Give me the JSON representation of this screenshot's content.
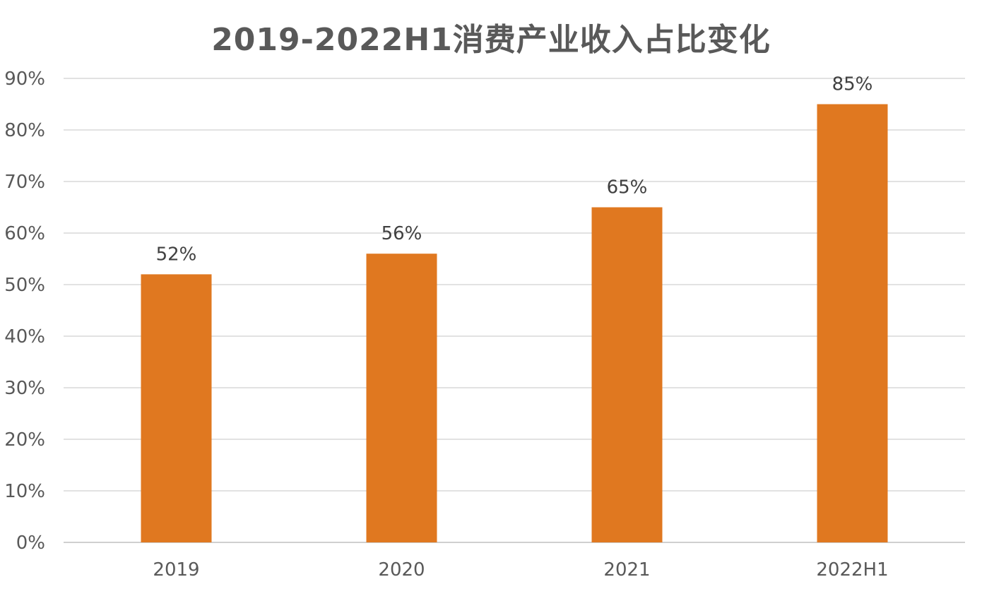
{
  "chart_data": {
    "type": "bar",
    "title": "2019-2022H1消费产业收入占比变化",
    "categories": [
      "2019",
      "2020",
      "2021",
      "2022H1"
    ],
    "values": [
      52,
      56,
      65,
      85
    ],
    "data_labels": [
      "52%",
      "56%",
      "65%",
      "85%"
    ],
    "ylim": [
      0,
      90
    ],
    "y_ticks": [
      0,
      10,
      20,
      30,
      40,
      50,
      60,
      70,
      80,
      90
    ],
    "y_tick_labels": [
      "0%",
      "10%",
      "20%",
      "30%",
      "40%",
      "50%",
      "60%",
      "70%",
      "80%",
      "90%"
    ],
    "grid": true,
    "legend": "none",
    "bar_color": "#E07820",
    "grid_color": "#D9D9D9",
    "text_color": "#595959"
  }
}
